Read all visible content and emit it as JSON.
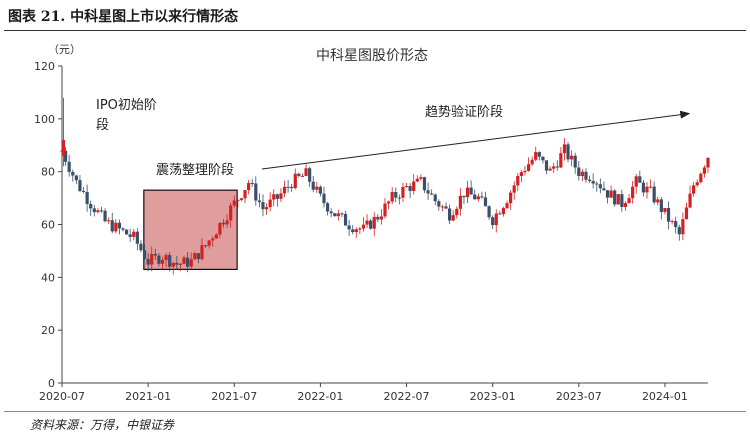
{
  "figure": {
    "title": "图表 21. 中科星图上市以来行情形态",
    "source": "资料来源：万得，中银证券"
  },
  "chart_data": {
    "type": "candlestick",
    "title": "中科星图股价形态",
    "ylabel": "（元）",
    "ylim": [
      0,
      120
    ],
    "yticks": [
      0,
      20,
      40,
      60,
      80,
      100,
      120
    ],
    "xticks": [
      "2020-07",
      "2021-01",
      "2021-07",
      "2022-01",
      "2022-07",
      "2023-01",
      "2023-07",
      "2024-01"
    ],
    "xrange": [
      "2020-07",
      "2024-04"
    ],
    "up_color": "#d42020",
    "down_color": "#3a4f6b",
    "box_fill": "#d98c8c",
    "price_path": [
      [
        "2020-07",
        88
      ],
      [
        "2020-08",
        76
      ],
      [
        "2020-09",
        68
      ],
      [
        "2020-10",
        61
      ],
      [
        "2020-11",
        58
      ],
      [
        "2020-12",
        55
      ],
      [
        "2021-01",
        46
      ],
      [
        "2021-02",
        48
      ],
      [
        "2021-03",
        45
      ],
      [
        "2021-04",
        46
      ],
      [
        "2021-05",
        52
      ],
      [
        "2021-06",
        60
      ],
      [
        "2021-07",
        68
      ],
      [
        "2021-08",
        76
      ],
      [
        "2021-09",
        66
      ],
      [
        "2021-10",
        70
      ],
      [
        "2021-11",
        76
      ],
      [
        "2021-12",
        79
      ],
      [
        "2022-01",
        70
      ],
      [
        "2022-02",
        64
      ],
      [
        "2022-03",
        60
      ],
      [
        "2022-04",
        58
      ],
      [
        "2022-05",
        63
      ],
      [
        "2022-06",
        70
      ],
      [
        "2022-07",
        74
      ],
      [
        "2022-08",
        76
      ],
      [
        "2022-09",
        69
      ],
      [
        "2022-10",
        64
      ],
      [
        "2022-11",
        72
      ],
      [
        "2022-12",
        70
      ],
      [
        "2023-01",
        62
      ],
      [
        "2023-02",
        70
      ],
      [
        "2023-03",
        80
      ],
      [
        "2023-04",
        86
      ],
      [
        "2023-05",
        80
      ],
      [
        "2023-06",
        88
      ],
      [
        "2023-07",
        80
      ],
      [
        "2023-08",
        78
      ],
      [
        "2023-09",
        72
      ],
      [
        "2023-10",
        68
      ],
      [
        "2023-11",
        76
      ],
      [
        "2023-12",
        72
      ],
      [
        "2024-01",
        64
      ],
      [
        "2024-02",
        56
      ],
      [
        "2024-03",
        75
      ],
      [
        "2024-04",
        86
      ]
    ],
    "annotations": [
      {
        "label": "IPO初始阶段",
        "lines": [
          "IPO初始阶",
          "段"
        ]
      },
      {
        "label": "震荡整理阶段",
        "lines": [
          "震荡整理阶段"
        ],
        "box": {
          "x0": "2020-12",
          "x1": "2021-07",
          "y0": 43,
          "y1": 73
        }
      },
      {
        "label": "趋势验证阶段",
        "lines": [
          "趋势验证阶段"
        ],
        "arrow": {
          "from": [
            "2021-09",
            81
          ],
          "to": [
            "2024-02",
            102
          ]
        }
      }
    ]
  }
}
